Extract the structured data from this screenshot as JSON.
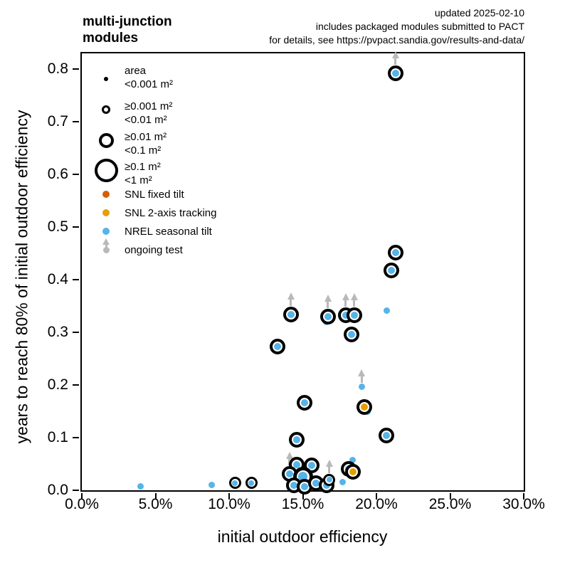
{
  "header": {
    "title_line1": "multi-junction",
    "title_line2": "modules",
    "updated": "updated 2025-02-10",
    "note1": "includes packaged modules submitted to PACT",
    "note2": "for details, see https://pvpact.sandia.gov/results-and-data/"
  },
  "chart_data": {
    "type": "scatter",
    "title": "multi-junction modules",
    "xlabel": "initial outdoor efficiency",
    "ylabel": "years to reach 80% of initial outdoor efficiency",
    "xlim": [
      0,
      30
    ],
    "ylim": [
      0,
      0.83
    ],
    "x_unit": "%",
    "grid": false,
    "xticks": {
      "values": [
        0,
        5,
        10,
        15,
        20,
        25,
        30
      ],
      "labels": [
        "0.0%",
        "5.0%",
        "10.0%",
        "15.0%",
        "20.0%",
        "25.0%",
        "30.0%"
      ]
    },
    "yticks": {
      "values": [
        0.0,
        0.1,
        0.2,
        0.3,
        0.4,
        0.5,
        0.6,
        0.7,
        0.8
      ],
      "labels": [
        "0.0",
        "0.1",
        "0.2",
        "0.3",
        "0.4",
        "0.5",
        "0.6",
        "0.7",
        "0.8"
      ]
    },
    "colors": {
      "snl_fixed_tilt": "#d55e00",
      "snl_2axis_tracking": "#e69f00",
      "nrel_seasonal_tilt": "#56b4e9",
      "ongoing": "#b9b9b9",
      "ring": "#000000"
    },
    "marker_px": {
      "dot": {
        "d": 9
      },
      "ring_s": {
        "outer": 17,
        "border": 3,
        "core": 8
      },
      "ring_m": {
        "outer": 22,
        "border": 4,
        "core": 10
      },
      "ring_l": {
        "outer": 28,
        "border": 5,
        "core": 13
      }
    },
    "size_classes": [
      "<0.001 m²",
      "≥0.001 m² <0.01 m²",
      "≥0.01 m² <0.1 m²",
      "≥0.1 m² <1 m²"
    ],
    "points": [
      {
        "x": 21.3,
        "y": 0.792,
        "size": "ring_m",
        "series": "nrel_seasonal_tilt",
        "ongoing": true
      },
      {
        "x": 21.3,
        "y": 0.452,
        "size": "ring_m",
        "series": "nrel_seasonal_tilt"
      },
      {
        "x": 21.0,
        "y": 0.418,
        "size": "ring_m",
        "series": "nrel_seasonal_tilt"
      },
      {
        "x": 20.7,
        "y": 0.341,
        "size": "dot",
        "series": "nrel_seasonal_tilt"
      },
      {
        "x": 16.6,
        "y": 0.32,
        "size": "dot",
        "series": "nrel_seasonal_tilt"
      },
      {
        "x": 16.7,
        "y": 0.33,
        "size": "ring_m",
        "series": "nrel_seasonal_tilt",
        "ongoing": true
      },
      {
        "x": 17.9,
        "y": 0.332,
        "size": "ring_m",
        "series": "nrel_seasonal_tilt",
        "ongoing": true
      },
      {
        "x": 18.5,
        "y": 0.332,
        "size": "ring_m",
        "series": "nrel_seasonal_tilt",
        "ongoing": true
      },
      {
        "x": 14.2,
        "y": 0.334,
        "size": "ring_m",
        "series": "nrel_seasonal_tilt",
        "ongoing": true
      },
      {
        "x": 18.3,
        "y": 0.296,
        "size": "ring_m",
        "series": "nrel_seasonal_tilt"
      },
      {
        "x": 13.3,
        "y": 0.273,
        "size": "ring_m",
        "series": "nrel_seasonal_tilt"
      },
      {
        "x": 19.0,
        "y": 0.197,
        "size": "dot",
        "series": "nrel_seasonal_tilt",
        "ongoing": true
      },
      {
        "x": 19.4,
        "y": 0.15,
        "size": "dot",
        "series": "nrel_seasonal_tilt"
      },
      {
        "x": 19.2,
        "y": 0.158,
        "size": "ring_m",
        "series": "snl_2axis_tracking"
      },
      {
        "x": 15.1,
        "y": 0.166,
        "size": "ring_m",
        "series": "nrel_seasonal_tilt"
      },
      {
        "x": 14.6,
        "y": 0.096,
        "size": "ring_m",
        "series": "nrel_seasonal_tilt"
      },
      {
        "x": 20.7,
        "y": 0.104,
        "size": "ring_m",
        "series": "nrel_seasonal_tilt"
      },
      {
        "x": 4.0,
        "y": 0.007,
        "size": "dot",
        "series": "nrel_seasonal_tilt"
      },
      {
        "x": 8.8,
        "y": 0.01,
        "size": "dot",
        "series": "nrel_seasonal_tilt"
      },
      {
        "x": 10.4,
        "y": 0.014,
        "size": "ring_s",
        "series": "nrel_seasonal_tilt"
      },
      {
        "x": 11.5,
        "y": 0.014,
        "size": "ring_s",
        "series": "nrel_seasonal_tilt"
      },
      {
        "x": 14.6,
        "y": 0.049,
        "size": "ring_m",
        "series": "nrel_seasonal_tilt"
      },
      {
        "x": 15.6,
        "y": 0.047,
        "size": "ring_m",
        "series": "nrel_seasonal_tilt"
      },
      {
        "x": 14.1,
        "y": 0.031,
        "size": "ring_m",
        "series": "nrel_seasonal_tilt",
        "ongoing": true
      },
      {
        "x": 15.0,
        "y": 0.026,
        "size": "ring_l",
        "series": "nrel_seasonal_tilt"
      },
      {
        "x": 14.4,
        "y": 0.01,
        "size": "ring_m",
        "series": "nrel_seasonal_tilt"
      },
      {
        "x": 15.1,
        "y": 0.007,
        "size": "ring_m",
        "series": "nrel_seasonal_tilt"
      },
      {
        "x": 15.9,
        "y": 0.014,
        "size": "ring_m",
        "series": "nrel_seasonal_tilt"
      },
      {
        "x": 16.6,
        "y": 0.009,
        "size": "ring_m",
        "series": "nrel_seasonal_tilt"
      },
      {
        "x": 16.8,
        "y": 0.02,
        "size": "ring_s",
        "series": "nrel_seasonal_tilt",
        "ongoing": true
      },
      {
        "x": 17.7,
        "y": 0.016,
        "size": "dot",
        "series": "nrel_seasonal_tilt"
      },
      {
        "x": 18.4,
        "y": 0.058,
        "size": "dot",
        "series": "nrel_seasonal_tilt"
      },
      {
        "x": 18.1,
        "y": 0.041,
        "size": "ring_m",
        "series": "nrel_seasonal_tilt"
      },
      {
        "x": 18.4,
        "y": 0.035,
        "size": "ring_m",
        "series": "snl_2axis_tracking"
      }
    ]
  },
  "legend": {
    "items": [
      {
        "marker": "area_dot",
        "lines": [
          "area",
          "<0.001 m²"
        ]
      },
      {
        "marker": "area_ring_small",
        "lines": [
          "≥0.001 m²",
          "<0.01 m²"
        ]
      },
      {
        "marker": "area_ring_med",
        "lines": [
          "≥0.01 m²",
          "<0.1 m²"
        ]
      },
      {
        "marker": "area_ring_large",
        "lines": [
          "≥0.1 m²",
          "<1 m²"
        ]
      },
      {
        "marker": "snl_fixed_tilt",
        "lines": [
          "SNL fixed tilt"
        ]
      },
      {
        "marker": "snl_2axis_tracking",
        "lines": [
          "SNL 2-axis tracking"
        ]
      },
      {
        "marker": "nrel_seasonal_tilt",
        "lines": [
          "NREL seasonal tilt"
        ]
      },
      {
        "marker": "ongoing_arrow",
        "lines": [
          "ongoing test"
        ]
      }
    ]
  }
}
